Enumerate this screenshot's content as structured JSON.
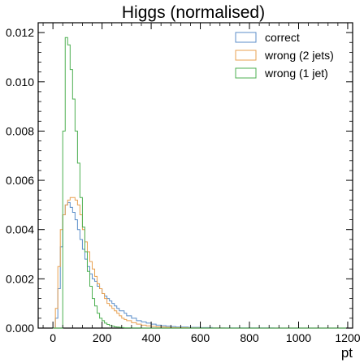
{
  "chart_data": {
    "type": "histogram",
    "title": "Higgs (normalised)",
    "xlabel": "pt",
    "ylabel": "",
    "xlim": [
      -60,
      1220
    ],
    "ylim": [
      0,
      0.0124
    ],
    "xticks": [
      0,
      200,
      400,
      600,
      800,
      1000,
      1200
    ],
    "yticks": [
      0.0,
      0.002,
      0.004,
      0.006,
      0.008,
      0.01,
      0.012
    ],
    "ytick_labels": [
      "0.000",
      "0.002",
      "0.004",
      "0.006",
      "0.008",
      "0.010",
      "0.012"
    ],
    "grid": false,
    "legend_position": "top-right",
    "series": [
      {
        "name": "correct",
        "color": "#5b8ec9",
        "x": [
          0,
          10,
          20,
          30,
          40,
          50,
          60,
          70,
          80,
          90,
          100,
          110,
          120,
          130,
          140,
          150,
          160,
          170,
          180,
          190,
          200,
          210,
          220,
          230,
          240,
          250,
          260,
          270,
          280,
          290,
          300,
          320,
          340,
          360,
          380,
          400,
          420,
          440,
          460,
          480,
          500,
          550,
          600,
          650,
          700,
          800,
          900,
          1000,
          1200
        ],
        "values": [
          0.0,
          0.0004,
          0.0016,
          0.0033,
          0.0046,
          0.005,
          0.0051,
          0.0049,
          0.0047,
          0.0044,
          0.004,
          0.0036,
          0.0032,
          0.0028,
          0.0025,
          0.0022,
          0.002,
          0.0019,
          0.0017,
          0.0016,
          0.0014,
          0.0013,
          0.0012,
          0.0011,
          0.001,
          0.0009,
          0.0008,
          0.0007,
          0.0007,
          0.0006,
          0.0005,
          0.0004,
          0.0003,
          0.00025,
          0.0002,
          0.00016,
          0.00012,
          0.0001,
          8e-05,
          6e-05,
          4e-05,
          3e-05,
          2e-05,
          1e-05,
          5e-06,
          3e-06,
          2e-06,
          0.0
        ]
      },
      {
        "name": "wrong (2 jets)",
        "color": "#e8a050",
        "x": [
          0,
          10,
          20,
          30,
          40,
          50,
          60,
          70,
          80,
          90,
          100,
          110,
          120,
          130,
          140,
          150,
          160,
          170,
          180,
          190,
          200,
          210,
          220,
          230,
          240,
          250,
          260,
          270,
          280,
          290,
          300,
          320,
          340,
          360,
          380,
          400,
          420,
          440,
          460,
          480,
          500,
          550,
          600,
          650,
          700,
          800,
          900,
          1000,
          1200
        ],
        "values": [
          0.0,
          0.0008,
          0.0025,
          0.004,
          0.0046,
          0.005,
          0.0052,
          0.0053,
          0.0053,
          0.0052,
          0.005,
          0.0046,
          0.004,
          0.0035,
          0.0031,
          0.0027,
          0.0024,
          0.0021,
          0.0018,
          0.0016,
          0.0014,
          0.0012,
          0.001,
          0.0009,
          0.0008,
          0.0007,
          0.0006,
          0.0005,
          0.0004,
          0.00035,
          0.0003,
          0.00022,
          0.00016,
          0.00012,
          9e-05,
          7e-05,
          5e-05,
          4e-05,
          3e-05,
          2e-05,
          1.5e-05,
          1e-05,
          5e-06,
          3e-06,
          2e-06,
          1e-06,
          0.0,
          0.0
        ]
      },
      {
        "name": "wrong (1 jet)",
        "color": "#4caf50",
        "x": [
          0,
          10,
          20,
          30,
          40,
          50,
          60,
          70,
          80,
          90,
          100,
          110,
          120,
          130,
          140,
          150,
          160,
          170,
          180,
          190,
          200,
          210,
          220,
          230,
          240,
          250,
          260,
          270,
          280,
          290,
          300,
          320,
          340,
          360,
          380,
          400,
          420,
          440,
          460,
          480,
          500,
          550,
          600,
          650,
          700,
          800,
          900,
          1000,
          1200
        ],
        "values": [
          0.0,
          0.0,
          0.0,
          0.0,
          0.008,
          0.0118,
          0.0115,
          0.0105,
          0.0093,
          0.008,
          0.0067,
          0.0053,
          0.0041,
          0.0031,
          0.0023,
          0.0017,
          0.0012,
          0.0009,
          0.0006,
          0.0004,
          0.0003,
          0.0002,
          0.00015,
          0.0001,
          8e-05,
          5e-05,
          4e-05,
          3e-05,
          2e-05,
          1e-05,
          8e-06,
          5e-06,
          3e-06,
          2e-06,
          1e-06,
          0.0,
          0.0,
          0.0,
          0.0,
          0.0,
          0.0,
          0.0,
          0.0,
          0.0,
          0.0,
          0.0,
          0.0,
          0.0
        ]
      }
    ]
  }
}
